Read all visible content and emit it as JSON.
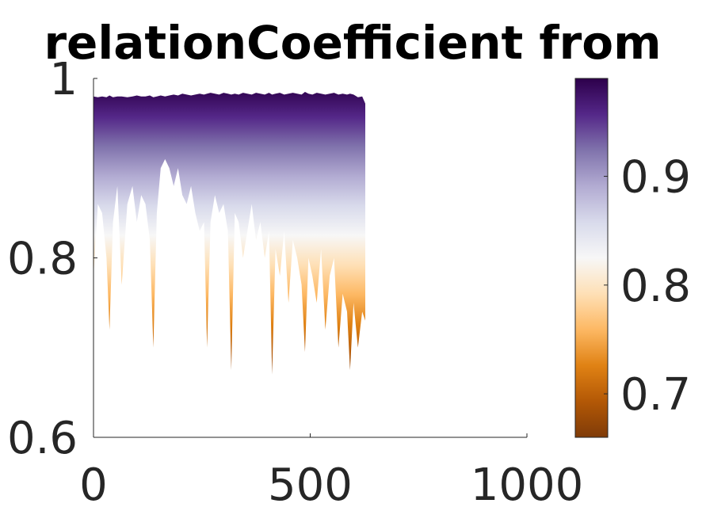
{
  "chart_data": {
    "type": "area",
    "title": "relationCoefficient from",
    "xlabel": "",
    "ylabel": "",
    "xlim": [
      0,
      1000
    ],
    "ylim": [
      0.6,
      1.0
    ],
    "xticks": [
      0,
      500,
      1000
    ],
    "xtick_labels": [
      "0",
      "500",
      "1000"
    ],
    "yticks": [
      0.6,
      0.8,
      1.0
    ],
    "ytick_labels": [
      "0.6",
      "0.8",
      "1"
    ],
    "grid": false,
    "legend": "none",
    "colorbar": {
      "placement": "right",
      "range": [
        0.66,
        0.99
      ],
      "ticks": [
        0.7,
        0.8,
        0.9
      ],
      "tick_labels": [
        "0.7",
        "0.8",
        "0.9"
      ],
      "colormap": [
        "#7f3b08",
        "#b35806",
        "#e08214",
        "#fdb863",
        "#fee0b6",
        "#f7f7f7",
        "#d8daeb",
        "#b2abd2",
        "#8073ac",
        "#542788",
        "#2d004b"
      ]
    },
    "series": [
      {
        "x": [
          0,
          10,
          20,
          30,
          37,
          45,
          55,
          65,
          78,
          90,
          100,
          110,
          120,
          130,
          138,
          146,
          155,
          165,
          175,
          185,
          195,
          205,
          215,
          225,
          235,
          245,
          255,
          262,
          270,
          280,
          290,
          300,
          310,
          318,
          326,
          335,
          345,
          355,
          365,
          375,
          385,
          395,
          405,
          412,
          420,
          430,
          440,
          450,
          460,
          470,
          480,
          488,
          496,
          505,
          515,
          525,
          535,
          545,
          555,
          565,
          575,
          585,
          592,
          600,
          610,
          620,
          627
        ],
        "upper": [
          0.98,
          0.979,
          0.98,
          0.979,
          0.981,
          0.979,
          0.98,
          0.98,
          0.979,
          0.98,
          0.981,
          0.98,
          0.98,
          0.981,
          0.979,
          0.98,
          0.981,
          0.98,
          0.981,
          0.982,
          0.981,
          0.983,
          0.982,
          0.981,
          0.982,
          0.983,
          0.982,
          0.983,
          0.984,
          0.983,
          0.982,
          0.984,
          0.983,
          0.982,
          0.983,
          0.982,
          0.984,
          0.983,
          0.982,
          0.984,
          0.983,
          0.982,
          0.984,
          0.982,
          0.983,
          0.984,
          0.982,
          0.983,
          0.984,
          0.983,
          0.982,
          0.985,
          0.983,
          0.982,
          0.984,
          0.983,
          0.982,
          0.983,
          0.984,
          0.982,
          0.983,
          0.982,
          0.983,
          0.982,
          0.979,
          0.98,
          0.972
        ],
        "lower": [
          0.78,
          0.86,
          0.85,
          0.8,
          0.72,
          0.84,
          0.88,
          0.77,
          0.86,
          0.88,
          0.84,
          0.87,
          0.86,
          0.82,
          0.7,
          0.85,
          0.9,
          0.91,
          0.9,
          0.88,
          0.9,
          0.87,
          0.86,
          0.88,
          0.85,
          0.83,
          0.84,
          0.7,
          0.84,
          0.87,
          0.85,
          0.86,
          0.83,
          0.675,
          0.85,
          0.84,
          0.8,
          0.83,
          0.86,
          0.82,
          0.84,
          0.8,
          0.83,
          0.67,
          0.81,
          0.78,
          0.83,
          0.75,
          0.82,
          0.8,
          0.77,
          0.695,
          0.8,
          0.78,
          0.75,
          0.81,
          0.72,
          0.78,
          0.8,
          0.7,
          0.76,
          0.74,
          0.675,
          0.75,
          0.7,
          0.74,
          0.73
        ]
      }
    ]
  }
}
